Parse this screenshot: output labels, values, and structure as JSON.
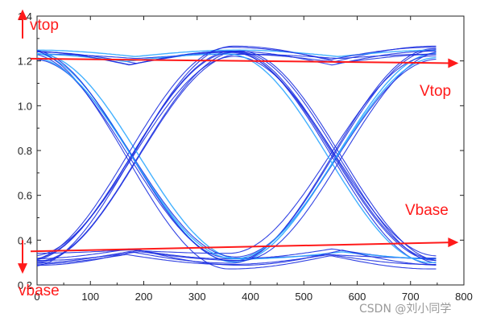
{
  "chart_data": {
    "type": "line",
    "title": "",
    "xlabel": "",
    "ylabel": "",
    "xlim": [
      0,
      800
    ],
    "ylim": [
      0.2,
      1.4
    ],
    "x_ticks": [
      "0",
      "100",
      "200",
      "300",
      "400",
      "500",
      "600",
      "700",
      "800"
    ],
    "y_ticks": [
      "0.2",
      "0.4",
      "0.6",
      "0.8",
      "1.0",
      "1.2",
      "1.4"
    ],
    "grid": false,
    "eye_diagram": {
      "levels": {
        "high": 1.2,
        "low": 0.35
      },
      "crossing_x": [
        180,
        560
      ],
      "crossing_level": 0.76,
      "unit_interval": 380,
      "x_end": 750,
      "trace_color": "#1c2fe0",
      "trace_highlight": "#2fa8ff"
    },
    "annotations": {
      "color": "#ff1a1a",
      "vtop_left": "vtop",
      "vtop_right": "Vtop",
      "vbase_right": "Vbase",
      "vbase_left": "vbase",
      "top_line": {
        "x": [
          0,
          790
        ],
        "y": [
          1.21,
          1.19
        ]
      },
      "base_line": {
        "x": [
          0,
          790
        ],
        "y": [
          0.35,
          0.39
        ]
      },
      "top_arrow_y": [
        1.3,
        1.43
      ],
      "base_arrow_y": [
        0.4,
        0.25
      ]
    }
  },
  "watermark": "CSDN @刘小同学"
}
